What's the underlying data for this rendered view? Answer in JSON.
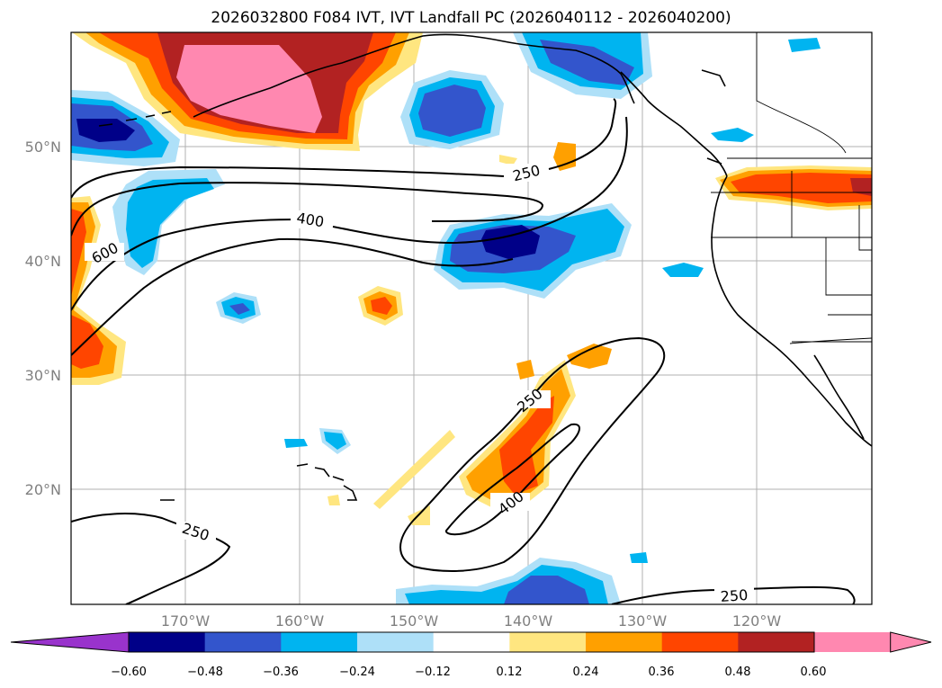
{
  "title": "2026032800 F084 IVT, IVT Landfall PC (2026040112 - 2026040200)",
  "map": {
    "lon_range": [
      -180,
      -110
    ],
    "lat_range": [
      10,
      60
    ],
    "lat_ticks": [
      "50°N",
      "40°N",
      "30°N",
      "20°N"
    ],
    "lon_ticks": [
      "170°W",
      "160°W",
      "150°W",
      "140°W",
      "130°W",
      "120°W"
    ],
    "gridlines": true
  },
  "contours": {
    "labels": [
      "250",
      "400",
      "600",
      "250",
      "400",
      "250",
      "250"
    ]
  },
  "colorbar": {
    "ticks": [
      "−0.60",
      "−0.48",
      "−0.36",
      "−0.24",
      "−0.12",
      "0.12",
      "0.24",
      "0.36",
      "0.48",
      "0.60"
    ],
    "colors": [
      "#9933cc",
      "#000088",
      "#3355cc",
      "#00b4f0",
      "#aee0f8",
      "#ffffff",
      "#ffe680",
      "#ffa000",
      "#ff4500",
      "#b22222",
      "#ff88b0",
      "#ff88b0"
    ],
    "extend": "both"
  }
}
